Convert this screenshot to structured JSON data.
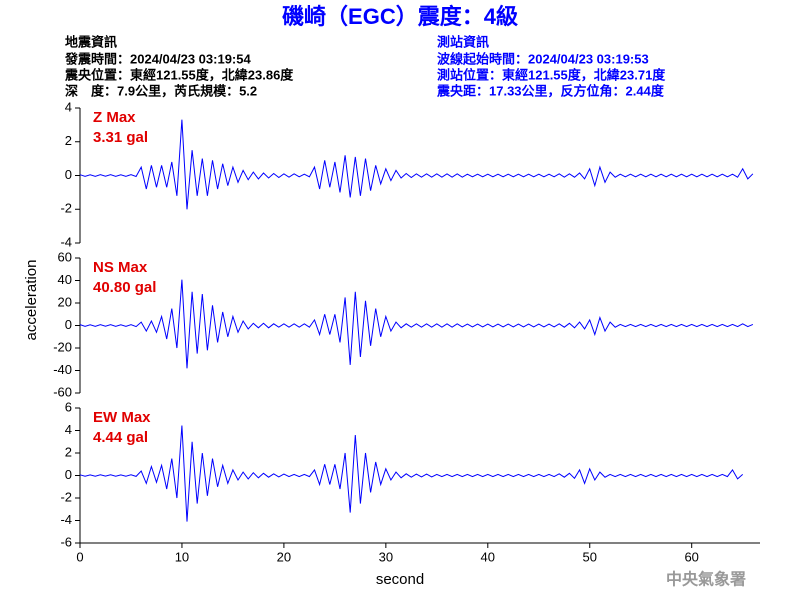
{
  "header": {
    "title": "磯崎（EGC）震度：4級",
    "left": [
      "地震資訊",
      "發震時間：2024/04/23 03:19:54",
      "震央位置：東經121.55度，北緯23.86度",
      "深　度：7.9公里，芮氏規模：5.2"
    ],
    "right": [
      "測站資訊",
      "波線起始時間：2024/04/23 03:19:53",
      "測站位置：東經121.55度，北緯23.71度",
      "震央距：17.33公里，反方位角：2.44度"
    ],
    "footer": "中央氣象署"
  },
  "chart_data": {
    "type": "line",
    "xlabel": "second",
    "ylabel": "acceleration",
    "xlim": [
      0,
      66.7
    ],
    "xticks": [
      0,
      10,
      20,
      30,
      40,
      50,
      60
    ],
    "x": [
      0,
      0.5,
      1,
      1.5,
      2,
      2.5,
      3,
      3.5,
      4,
      4.5,
      5,
      5.5,
      6,
      6.5,
      7,
      7.5,
      8,
      8.5,
      9,
      9.5,
      10,
      10.5,
      11,
      11.5,
      12,
      12.5,
      13,
      13.5,
      14,
      14.5,
      15,
      15.5,
      16,
      16.5,
      17,
      17.5,
      18,
      18.5,
      19,
      19.5,
      20,
      20.5,
      21,
      21.5,
      22,
      22.5,
      23,
      23.5,
      24,
      24.5,
      25,
      25.5,
      26,
      26.5,
      27,
      27.5,
      28,
      28.5,
      29,
      29.5,
      30,
      30.5,
      31,
      31.5,
      32,
      32.5,
      33,
      33.5,
      34,
      34.5,
      35,
      35.5,
      36,
      36.5,
      37,
      37.5,
      38,
      38.5,
      39,
      39.5,
      40,
      40.5,
      41,
      41.5,
      42,
      42.5,
      43,
      43.5,
      44,
      44.5,
      45,
      45.5,
      46,
      46.5,
      47,
      47.5,
      48,
      48.5,
      49,
      49.5,
      50,
      50.5,
      51,
      51.5,
      52,
      52.5,
      53,
      53.5,
      54,
      54.5,
      55,
      55.5,
      56,
      56.5,
      57,
      57.5,
      58,
      58.5,
      59,
      59.5,
      60,
      60.5,
      61,
      61.5,
      62,
      62.5,
      63,
      63.5,
      64,
      64.5,
      65,
      65.5,
      66
    ],
    "panels": [
      {
        "label": "Z Max",
        "max_label": "3.31 gal",
        "color": "#0000ff",
        "ylim": [
          -4,
          4
        ],
        "yticks": [
          -4,
          -2,
          0,
          2,
          4
        ],
        "values": [
          0.05,
          -0.05,
          0.04,
          -0.05,
          0.05,
          -0.04,
          0.05,
          -0.05,
          0.04,
          -0.05,
          0.05,
          -0.06,
          0.5,
          -0.8,
          0.6,
          -0.7,
          0.6,
          -0.7,
          0.8,
          -1.2,
          3.31,
          -2.0,
          1.5,
          -1.2,
          1.0,
          -1.2,
          0.9,
          -0.8,
          0.7,
          -0.6,
          0.5,
          -0.4,
          0.3,
          -0.25,
          0.2,
          -0.2,
          0.15,
          -0.15,
          0.12,
          -0.12,
          0.1,
          -0.1,
          0.1,
          -0.08,
          0.08,
          -0.08,
          0.5,
          -0.8,
          0.9,
          -0.7,
          0.8,
          -1.0,
          1.2,
          -1.3,
          1.1,
          -1.2,
          1.0,
          -0.9,
          0.6,
          -0.5,
          0.4,
          -0.3,
          0.3,
          -0.15,
          0.12,
          -0.12,
          0.1,
          -0.1,
          0.1,
          -0.1,
          0.1,
          -0.1,
          0.1,
          -0.1,
          0.1,
          -0.1,
          0.08,
          -0.08,
          0.08,
          -0.08,
          0.08,
          -0.08,
          0.08,
          -0.08,
          0.08,
          -0.08,
          0.08,
          -0.08,
          0.08,
          -0.08,
          0.08,
          -0.08,
          0.08,
          -0.08,
          0.1,
          -0.1,
          0.1,
          -0.1,
          0.15,
          -0.2,
          0.4,
          -0.6,
          0.5,
          -0.4,
          0.2,
          -0.1,
          0.08,
          -0.08,
          0.08,
          -0.08,
          0.08,
          -0.08,
          0.08,
          -0.08,
          0.08,
          -0.08,
          0.08,
          -0.08,
          0.08,
          -0.08,
          0.08,
          -0.08,
          0.08,
          -0.08,
          0.08,
          -0.08,
          0.08,
          -0.08,
          0.08,
          -0.1,
          0.4,
          -0.2,
          0.1
        ]
      },
      {
        "label": "NS Max",
        "max_label": "40.80 gal",
        "color": "#0000ff",
        "ylim": [
          -60,
          60
        ],
        "yticks": [
          -60,
          -40,
          -20,
          0,
          20,
          40,
          60
        ],
        "values": [
          0.8,
          -0.8,
          0.6,
          -0.8,
          0.8,
          -0.6,
          0.8,
          -0.8,
          0.6,
          -0.8,
          0.8,
          -1,
          3,
          -5,
          4,
          -6,
          8,
          -12,
          15,
          -20,
          40.8,
          -38,
          30,
          -25,
          28,
          -22,
          18,
          -15,
          12,
          -10,
          8,
          -6,
          4,
          -3,
          2,
          -2,
          2,
          -2,
          1.5,
          -1.5,
          1.5,
          -1.5,
          1.5,
          -1.5,
          1.5,
          -1.5,
          5,
          -8,
          10,
          -8,
          10,
          -15,
          25,
          -35,
          30,
          -28,
          22,
          -18,
          15,
          -10,
          8,
          -5,
          3,
          -2,
          1.5,
          -1.5,
          1.5,
          -1.5,
          1.5,
          -1.5,
          1.5,
          -1.5,
          1.5,
          -1.5,
          1.5,
          -1.2,
          1.2,
          -1.2,
          1.2,
          -1.2,
          1.2,
          -1.2,
          1.2,
          -1.2,
          1.2,
          -1.2,
          1.2,
          -1.2,
          1.2,
          -1.2,
          1.2,
          -1.2,
          1.2,
          -1.2,
          1.5,
          -1.5,
          2,
          -2,
          3,
          -3,
          5,
          -8,
          7,
          -5,
          3,
          -1.5,
          1,
          -1,
          1,
          -1,
          1,
          -1,
          1,
          -1,
          1,
          -1,
          1,
          -1,
          1,
          -1,
          1,
          -1,
          1,
          -1,
          1,
          -1,
          1,
          -1,
          1,
          -1,
          1.5,
          -1,
          1
        ]
      },
      {
        "label": "EW Max",
        "max_label": "4.44 gal",
        "color": "#0000ff",
        "ylim": [
          -6,
          6
        ],
        "yticks": [
          -6,
          -4,
          -2,
          0,
          2,
          4,
          6
        ],
        "values": [
          0.06,
          -0.06,
          0.05,
          -0.06,
          0.06,
          -0.05,
          0.06,
          -0.06,
          0.05,
          -0.06,
          0.06,
          -0.08,
          0.4,
          -0.7,
          0.8,
          -0.6,
          0.9,
          -1.2,
          1.5,
          -2.0,
          4.44,
          -4.1,
          3.0,
          -2.5,
          2.0,
          -1.8,
          1.5,
          -1.0,
          0.9,
          -0.7,
          0.5,
          -0.4,
          0.3,
          -0.3,
          0.25,
          -0.2,
          0.2,
          -0.15,
          0.15,
          -0.12,
          0.12,
          -0.1,
          0.1,
          -0.1,
          0.1,
          -0.1,
          0.5,
          -0.8,
          1.0,
          -0.8,
          1.0,
          -1.2,
          2.0,
          -3.3,
          3.6,
          -2.5,
          2.0,
          -1.5,
          1.2,
          -0.8,
          0.6,
          -0.4,
          0.3,
          -0.2,
          0.15,
          -0.15,
          0.12,
          -0.12,
          0.12,
          -0.12,
          0.1,
          -0.1,
          0.1,
          -0.1,
          0.1,
          -0.1,
          0.1,
          -0.1,
          0.1,
          -0.1,
          0.1,
          -0.1,
          0.1,
          -0.1,
          0.1,
          -0.1,
          0.1,
          -0.1,
          0.1,
          -0.1,
          0.1,
          -0.1,
          0.1,
          -0.1,
          0.15,
          -0.15,
          0.2,
          -0.25,
          0.5,
          -0.7,
          0.6,
          -0.4,
          0.3,
          -0.15,
          0.1,
          -0.1,
          0.1,
          -0.1,
          0.1,
          -0.1,
          0.1,
          -0.1,
          0.1,
          -0.1,
          0.1,
          -0.1,
          0.1,
          -0.1,
          0.1,
          -0.1,
          0.1,
          -0.1,
          0.1,
          -0.1,
          0.1,
          -0.1,
          0.1,
          -0.1,
          0.5,
          -0.3,
          0.1
        ]
      }
    ]
  }
}
